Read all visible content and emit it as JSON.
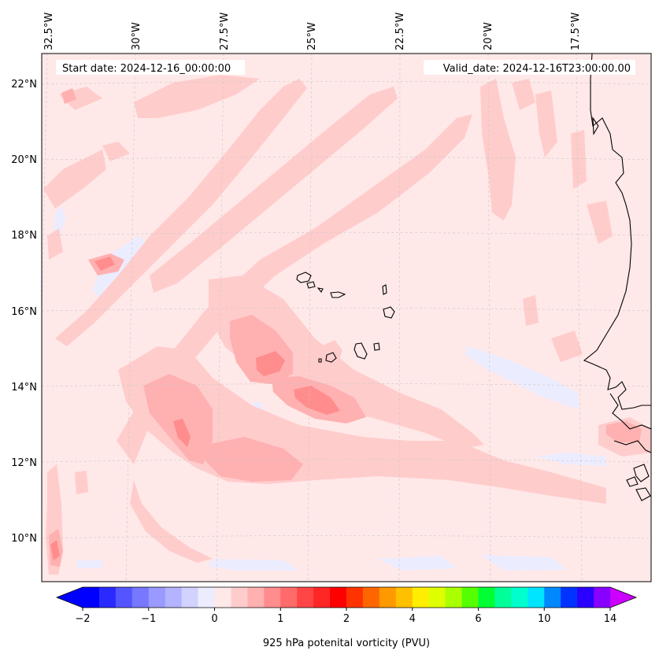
{
  "map": {
    "variable": "925 hPa potenital vorticity (PVU)",
    "start_label": "Start date: 2024-12-16_00:00:00",
    "valid_label": "Valid_date: 2024-12-16T23:00:00.00",
    "lon_labels": [
      "32.5°W",
      "30°W",
      "27.5°W",
      "25°W",
      "22.5°W",
      "20°W",
      "17.5°W"
    ],
    "lat_labels": [
      "22°N",
      "20°N",
      "18°N",
      "16°N",
      "14°N",
      "12°N",
      "10°N"
    ],
    "extent": {
      "lon": [
        -32.6,
        -15.0
      ],
      "lat": [
        8.9,
        22.8
      ]
    }
  },
  "colorbar": {
    "tick_labels": [
      "−2",
      "−1",
      "0",
      "1",
      "2",
      "4",
      "6",
      "10",
      "14"
    ],
    "extend": "both",
    "colors": [
      "#0000ff",
      "#2a2aff",
      "#5555ff",
      "#7777ff",
      "#9999ff",
      "#b3b3ff",
      "#d2d2ff",
      "#ececff",
      "#ffe8e8",
      "#ffcccc",
      "#ffb0b0",
      "#ff8d8d",
      "#ff6a6a",
      "#ff4545",
      "#ff2626",
      "#ff0000",
      "#ff3300",
      "#ff6600",
      "#ff9900",
      "#ffc000",
      "#ffee00",
      "#ddff00",
      "#aaff00",
      "#55ff00",
      "#00ff33",
      "#00ff99",
      "#00ffcc",
      "#00e5ff",
      "#0088ff",
      "#0033ff",
      "#2a00ff",
      "#8800ff"
    ],
    "under_color": "#0000ff",
    "over_color": "#cc00ff"
  },
  "colors": {
    "background_field": "#ffe8e8",
    "level_1": "#ffcccc",
    "level_2": "#ffb0b0",
    "level_3": "#ff8d8d",
    "negative": "#ececff",
    "coastline": "#000000",
    "gridline": "#c8c8c8"
  }
}
